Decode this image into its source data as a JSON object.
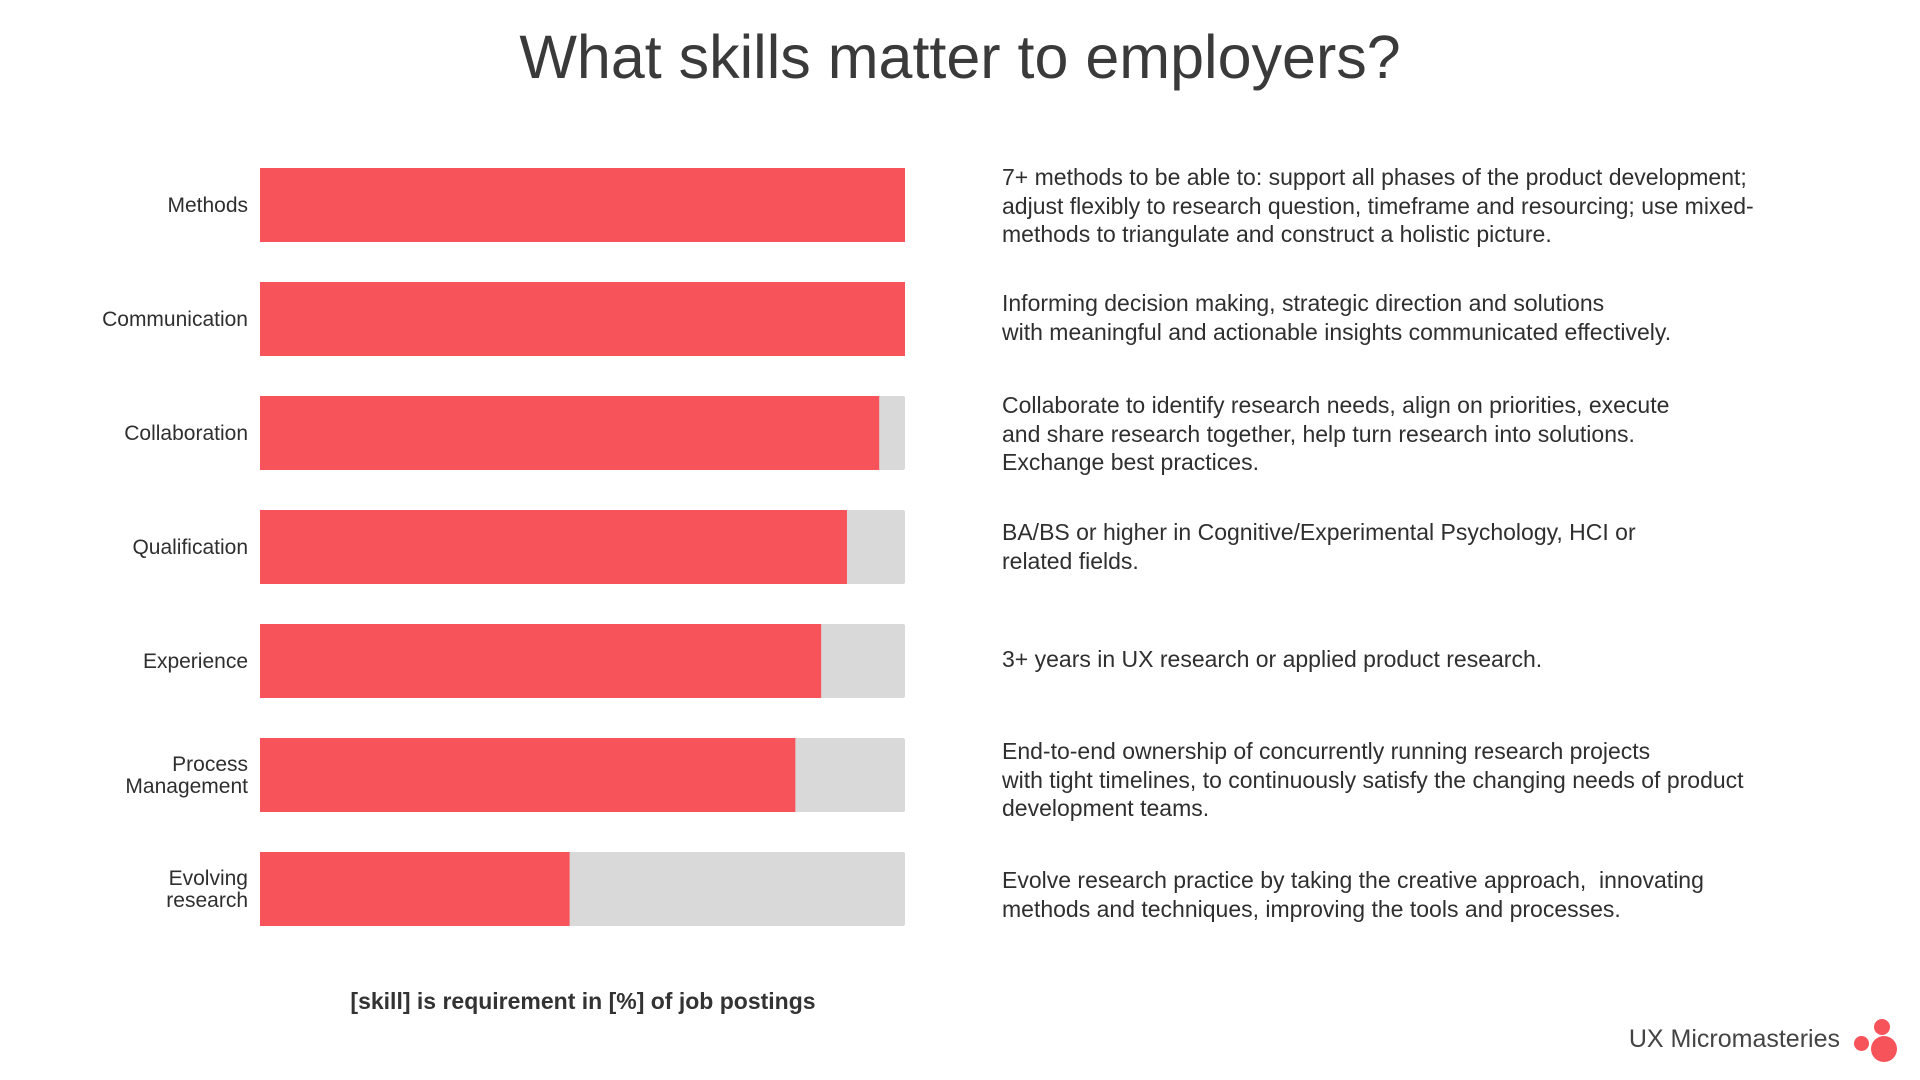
{
  "title": "What skills matter to employers?",
  "caption": "[skill] is requirement in [%] of job postings",
  "brand": {
    "name": "UX Micromasteries",
    "logo_icon": "three-dots-logo-icon"
  },
  "colors": {
    "bar": "#f7535a",
    "track": "#d9d9d9",
    "text": "#333333"
  },
  "chart_data": {
    "type": "bar",
    "orientation": "horizontal",
    "categories": [
      [
        "Methods"
      ],
      [
        "Communication"
      ],
      [
        "Collaboration"
      ],
      [
        "Qualification"
      ],
      [
        "Experience"
      ],
      [
        "Process",
        "Management"
      ],
      [
        "Evolving",
        "research"
      ]
    ],
    "values": [
      100,
      100,
      96,
      91,
      87,
      83,
      48
    ],
    "xlim": [
      0,
      100
    ],
    "unit": "%",
    "grid": false
  },
  "descriptions": [
    [
      "7+ methods to be able to: support all phases of the product development;",
      "adjust flexibly to research question, timeframe and resourcing; use mixed-",
      "methods to triangulate and construct a holistic picture."
    ],
    [
      "Informing decision making, strategic direction and solutions",
      "with meaningful and actionable insights communicated effectively."
    ],
    [
      "Collaborate to identify research needs, align on priorities, execute",
      "and share research together, help turn research into solutions.",
      "Exchange best practices."
    ],
    [
      "BA/BS or higher in Cognitive/Experimental Psychology, HCI or",
      "related fields."
    ],
    [
      "3+ years in UX research or applied product research."
    ],
    [
      "End-to-end ownership of concurrently running research projects",
      "with tight timelines, to continuously satisfy the changing needs of product",
      "development teams."
    ],
    [
      "Evolve research practice by taking the creative approach,  innovating",
      "methods and techniques, improving the tools and processes."
    ]
  ]
}
